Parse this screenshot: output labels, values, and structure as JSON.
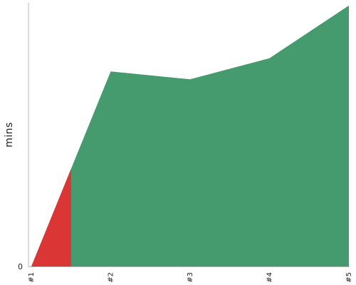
{
  "chart_data": {
    "type": "area",
    "title": "",
    "xlabel": "",
    "ylabel": "mins",
    "categories": [
      "#1",
      "#2",
      "#3",
      "#4",
      "#5"
    ],
    "y_tick_labels": [
      "0"
    ],
    "ylim": [
      0,
      100
    ],
    "grid": false,
    "legend": "none",
    "series": [
      {
        "values": [
          0,
          74,
          71,
          79,
          99
        ],
        "color": "#459b6d"
      }
    ],
    "red_region": {
      "x_start": 0,
      "x_end": 0.5,
      "values": [
        0,
        37
      ],
      "color": "#d93635"
    }
  }
}
